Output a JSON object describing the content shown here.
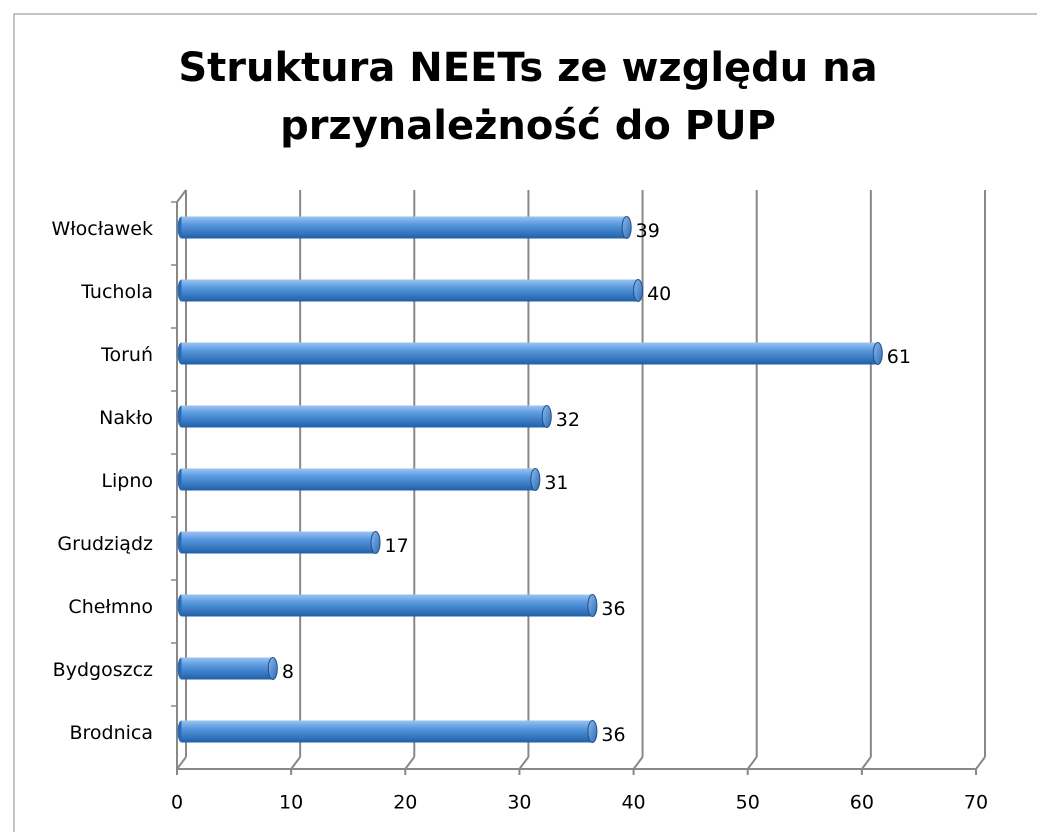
{
  "chart_data": {
    "type": "bar",
    "orientation": "horizontal",
    "title": [
      "Struktura NEETs ze względu na",
      "przynależność do PUP"
    ],
    "categories": [
      "Włocławek",
      "Tuchola",
      "Toruń",
      "Nakło",
      "Lipno",
      "Grudziądz",
      "Chełmno",
      "Bydgoszcz",
      "Brodnica"
    ],
    "values": [
      39,
      40,
      61,
      32,
      31,
      17,
      36,
      8,
      36
    ],
    "color": "#4f8fd8",
    "xlim": [
      0,
      70
    ],
    "xticks": [
      0,
      10,
      20,
      30,
      40,
      50,
      60,
      70
    ],
    "grid": true
  }
}
